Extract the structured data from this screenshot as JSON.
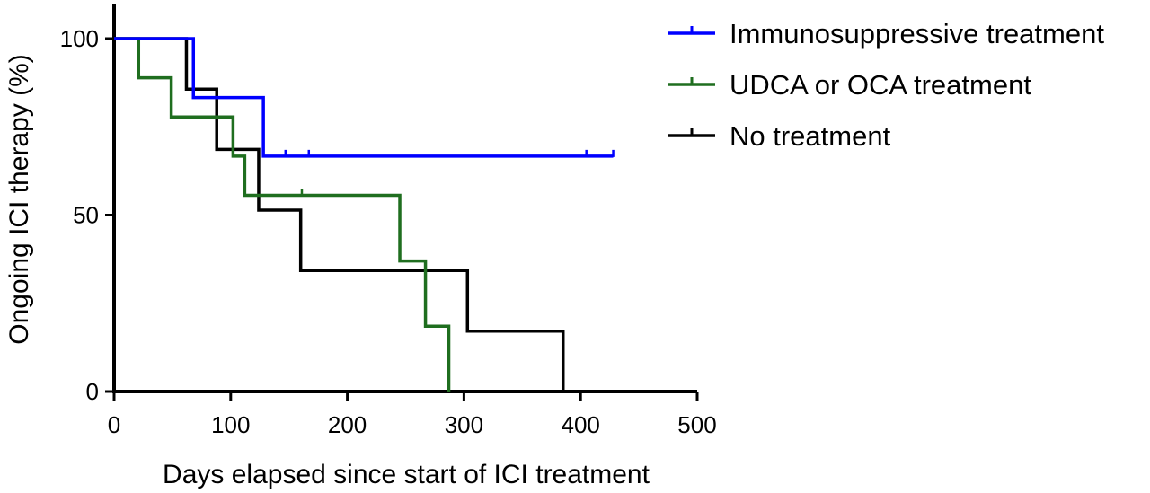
{
  "chart_data": {
    "type": "line",
    "title": "",
    "xlabel": "Days elapsed since start of ICI treatment",
    "ylabel": "Ongoing ICI therapy (%)",
    "xlim": [
      0,
      500
    ],
    "ylim": [
      0,
      100
    ],
    "xticks": [
      0,
      100,
      200,
      300,
      400,
      500
    ],
    "yticks": [
      0,
      50,
      100
    ],
    "step": "post",
    "grid": false,
    "legend": "top-right",
    "series": [
      {
        "name": "Immunosuppressive treatment",
        "color": "#0000ff",
        "x": [
          0,
          68,
          128,
          428
        ],
        "y": [
          100,
          83.3,
          66.7,
          66.7
        ],
        "censored": [
          [
            147,
            66.7
          ],
          [
            167,
            66.7
          ],
          [
            405,
            66.7
          ],
          [
            428,
            66.7
          ]
        ]
      },
      {
        "name": "UDCA or OCA treatment",
        "color": "#1f6e1f",
        "x": [
          0,
          21,
          49,
          102,
          112,
          245,
          267,
          287
        ],
        "y": [
          100,
          88.9,
          77.8,
          66.7,
          55.6,
          37,
          18.5,
          0
        ],
        "censored": [
          [
            161,
            55.6
          ]
        ]
      },
      {
        "name": "No treatment",
        "color": "#000000",
        "x": [
          0,
          62,
          88,
          124,
          160,
          303,
          385
        ],
        "y": [
          100,
          85.7,
          68.6,
          51.4,
          34.3,
          17.1,
          0
        ],
        "censored": []
      }
    ],
    "xtick_labels": [
      "0",
      "100",
      "200",
      "300",
      "400",
      "500"
    ],
    "ytick_labels": [
      "0",
      "50",
      "100"
    ]
  }
}
